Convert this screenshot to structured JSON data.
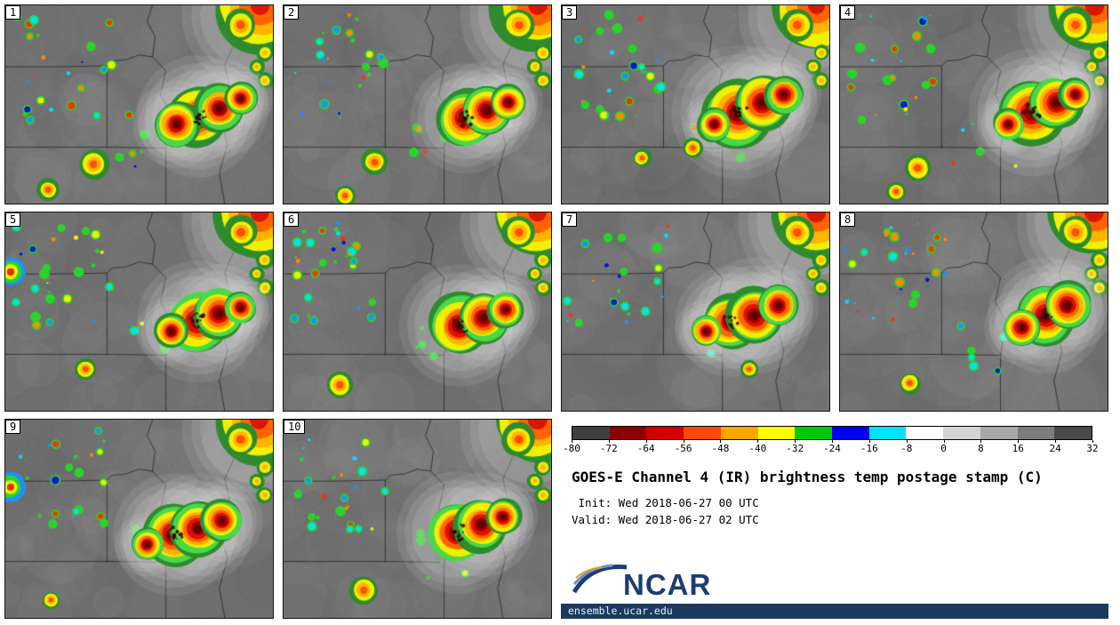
{
  "meta": {
    "title": "GOES-E Channel 4 (IR) brightness temp postage stamp (C)",
    "init_line": " Init: Wed 2018-06-27 00 UTC",
    "valid_line": "Valid: Wed 2018-06-27 02 UTC",
    "site": "ensemble.ucar.edu",
    "logo_text": "NCAR",
    "accent_navy": "#1c3a5e",
    "logo_blue": "#1d3e6f"
  },
  "colorbar": {
    "ticks": [
      "-80",
      "-72",
      "-64",
      "-56",
      "-48",
      "-40",
      "-32",
      "-24",
      "-16",
      "-8",
      "0",
      "8",
      "16",
      "24",
      "32"
    ],
    "colors": [
      "#3f3f3f",
      "#8b0000",
      "#d40000",
      "#ff4800",
      "#ffa500",
      "#ffff00",
      "#00c800",
      "#0000ee",
      "#00e5ff",
      "#ffffff",
      "#d4d4d4",
      "#a8a8a8",
      "#7c7c7c",
      "#4a4a4a"
    ]
  },
  "chart_data": {
    "type": "heatmap",
    "title": "GOES-E Channel 4 (IR) brightness temp postage stamp (C)",
    "variable": "GOES-E Channel 4 (IR) brightness temperature",
    "units": "C",
    "init": "Wed 2018-06-27 00 UTC",
    "valid": "Wed 2018-06-27 02 UTC",
    "members": [
      "1",
      "2",
      "3",
      "4",
      "5",
      "6",
      "7",
      "8",
      "9",
      "10"
    ],
    "colorbar_ticks": [
      -80,
      -72,
      -64,
      -56,
      -48,
      -40,
      -32,
      -24,
      -16,
      -8,
      0,
      8,
      16,
      24,
      32
    ],
    "colorbar_range": [
      -80,
      32
    ],
    "legend_position": "bottom-right",
    "description": "10-member ensemble postage-stamp grid of simulated IR brightness temperature over the central US; cold convective cloud tops (-80 to -32 C) shown in dark red/red/orange/yellow/green over a gray warm background"
  },
  "panels": [
    {
      "label": "1",
      "storm": [
        [
          0.72,
          0.56,
          0.105
        ],
        [
          0.64,
          0.6,
          0.075
        ],
        [
          0.8,
          0.52,
          0.085
        ],
        [
          0.88,
          0.47,
          0.055
        ]
      ],
      "cells": [
        [
          0.33,
          0.8,
          0.05
        ],
        [
          0.16,
          0.93,
          0.038
        ]
      ]
    },
    {
      "label": "2",
      "storm": [
        [
          0.68,
          0.57,
          0.095
        ],
        [
          0.76,
          0.53,
          0.085
        ],
        [
          0.84,
          0.49,
          0.06
        ]
      ],
      "cells": [
        [
          0.34,
          0.79,
          0.045
        ],
        [
          0.23,
          0.96,
          0.035
        ]
      ]
    },
    {
      "label": "3",
      "storm": [
        [
          0.66,
          0.54,
          0.115
        ],
        [
          0.75,
          0.49,
          0.095
        ],
        [
          0.83,
          0.45,
          0.065
        ],
        [
          0.57,
          0.6,
          0.055
        ]
      ],
      "cells": [
        [
          0.49,
          0.72,
          0.035
        ],
        [
          0.3,
          0.77,
          0.03
        ]
      ]
    },
    {
      "label": "4",
      "storm": [
        [
          0.72,
          0.54,
          0.11
        ],
        [
          0.81,
          0.49,
          0.09
        ],
        [
          0.88,
          0.45,
          0.055
        ],
        [
          0.63,
          0.6,
          0.055
        ]
      ],
      "cells": [
        [
          0.29,
          0.82,
          0.045
        ],
        [
          0.21,
          0.94,
          0.034
        ]
      ]
    },
    {
      "label": "5",
      "storm": [
        [
          0.72,
          0.55,
          0.105
        ],
        [
          0.8,
          0.51,
          0.085
        ],
        [
          0.88,
          0.48,
          0.055
        ],
        [
          0.62,
          0.6,
          0.06
        ]
      ],
      "cells": [
        [
          0.3,
          0.79,
          0.036
        ]
      ],
      "left_blob": [
        0.02,
        0.3,
        0.05
      ]
    },
    {
      "label": "6",
      "storm": [
        [
          0.66,
          0.57,
          0.105
        ],
        [
          0.75,
          0.53,
          0.085
        ],
        [
          0.83,
          0.49,
          0.06
        ]
      ],
      "cells": [
        [
          0.21,
          0.87,
          0.046
        ]
      ]
    },
    {
      "label": "7",
      "storm": [
        [
          0.63,
          0.55,
          0.095
        ],
        [
          0.72,
          0.52,
          0.1
        ],
        [
          0.81,
          0.47,
          0.07
        ],
        [
          0.54,
          0.6,
          0.055
        ]
      ],
      "cells": [
        [
          0.7,
          0.79,
          0.03
        ]
      ]
    },
    {
      "label": "8",
      "storm": [
        [
          0.77,
          0.52,
          0.1
        ],
        [
          0.85,
          0.47,
          0.08
        ],
        [
          0.68,
          0.58,
          0.065
        ]
      ],
      "cells": [
        [
          0.26,
          0.86,
          0.036
        ]
      ]
    },
    {
      "label": "9",
      "storm": [
        [
          0.63,
          0.58,
          0.105
        ],
        [
          0.72,
          0.55,
          0.095
        ],
        [
          0.81,
          0.51,
          0.07
        ],
        [
          0.53,
          0.63,
          0.055
        ]
      ],
      "cells": [
        [
          0.17,
          0.91,
          0.03
        ]
      ],
      "left_blob": [
        0.02,
        0.34,
        0.05
      ]
    },
    {
      "label": "10",
      "storm": [
        [
          0.65,
          0.57,
          0.105
        ],
        [
          0.74,
          0.53,
          0.09
        ],
        [
          0.82,
          0.49,
          0.06
        ]
      ],
      "cells": [
        [
          0.3,
          0.86,
          0.048
        ]
      ]
    }
  ]
}
